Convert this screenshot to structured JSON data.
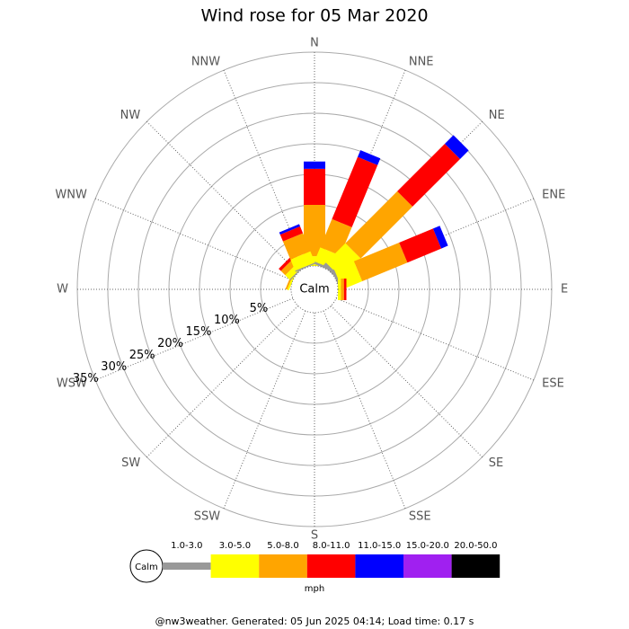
{
  "chart_data": {
    "type": "wind-rose",
    "title": "Wind rose for 05 Mar 2020",
    "calm_label": "Calm",
    "directions": [
      "N",
      "NNE",
      "NE",
      "ENE",
      "E",
      "ESE",
      "SE",
      "SSE",
      "S",
      "SSW",
      "SW",
      "WSW",
      "W",
      "WNW",
      "NW",
      "NNW"
    ],
    "rlim": [
      0,
      35
    ],
    "rticks": [
      {
        "value": 5,
        "label": "5%"
      },
      {
        "value": 10,
        "label": "10%"
      },
      {
        "value": 15,
        "label": "15%"
      },
      {
        "value": 20,
        "label": "20%"
      },
      {
        "value": 25,
        "label": "25%"
      },
      {
        "value": 30,
        "label": "30%"
      },
      {
        "value": 35,
        "label": "35%"
      }
    ],
    "unit": "mph",
    "series": [
      {
        "name": "1.0-3.0",
        "color": "#999999",
        "values": [
          0,
          0.4,
          0.6,
          0.4,
          0,
          0,
          0,
          0,
          0,
          0,
          0,
          0,
          0,
          0,
          0.2,
          0.2
        ]
      },
      {
        "name": "3.0-5.0",
        "color": "#ffff00",
        "values": [
          1.6,
          2.5,
          4.5,
          3.5,
          0.5,
          0,
          0,
          0,
          0,
          0,
          0,
          0,
          0,
          0.3,
          1,
          2
        ]
      },
      {
        "name": "5.0-8.0",
        "color": "#ffa500",
        "values": [
          8.4,
          5,
          12,
          8,
          0.5,
          0,
          0,
          0,
          0,
          0,
          0,
          0,
          0,
          0.3,
          1,
          3.2
        ]
      },
      {
        "name": "8.0-11.0",
        "color": "#ff0000",
        "values": [
          5.9,
          11,
          11,
          6,
          0.4,
          0,
          0,
          0,
          0,
          0,
          0,
          0,
          0,
          0,
          0.5,
          1.2
        ]
      },
      {
        "name": "11.0-15.0",
        "color": "#0000ff",
        "values": [
          1.2,
          1.2,
          2,
          1.2,
          0,
          0,
          0,
          0,
          0,
          0,
          0,
          0,
          0,
          0,
          0,
          0.4
        ]
      },
      {
        "name": "15.0-20.0",
        "color": "#a020f0",
        "values": [
          0,
          0,
          0,
          0,
          0,
          0,
          0,
          0,
          0,
          0,
          0,
          0,
          0,
          0,
          0,
          0
        ]
      },
      {
        "name": "20.0-50.0",
        "color": "#000000",
        "values": [
          0,
          0,
          0,
          0,
          0,
          0,
          0,
          0,
          0,
          0,
          0,
          0,
          0,
          0,
          0,
          0
        ]
      }
    ]
  },
  "footer": "@nw3weather. Generated: 05 Jun 2025 04:14; Load time: 0.17 s"
}
